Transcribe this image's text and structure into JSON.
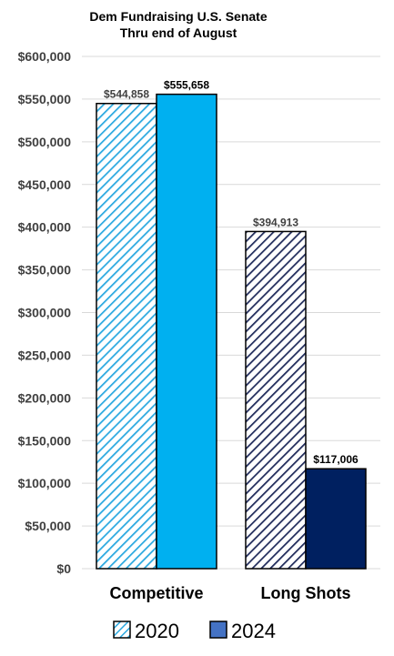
{
  "chart_data": {
    "type": "bar",
    "title": "Dem Fundraising U.S. Senate",
    "subtitle": "Thru end of August",
    "xlabel": "",
    "ylabel": "",
    "categories": [
      "Competitive",
      "Long Shots"
    ],
    "series": [
      {
        "name": "2020",
        "values": [
          544858,
          394913
        ],
        "value_labels": [
          "$544,858",
          "$394,913"
        ],
        "color": "#29A8E0",
        "pattern": "diagonal-hatch"
      },
      {
        "name": "2024",
        "values": [
          555658,
          117006
        ],
        "value_labels": [
          "$555,658",
          "$117,006"
        ],
        "color": "#00B0F0",
        "pattern": "solid"
      }
    ],
    "series_colors_by_category": {
      "2020": [
        "#29A8E0",
        "#1F2A5A"
      ],
      "2024": [
        "#00B0F0",
        "#002060"
      ]
    },
    "ylim": [
      0,
      600000
    ],
    "yticks": [
      0,
      50000,
      100000,
      150000,
      200000,
      250000,
      300000,
      350000,
      400000,
      450000,
      500000,
      550000,
      600000
    ],
    "ytick_labels": [
      "$0",
      "$50,000",
      "$100,000",
      "$150,000",
      "$200,000",
      "$250,000",
      "$300,000",
      "$350,000",
      "$400,000",
      "$450,000",
      "$500,000",
      "$550,000",
      "$600,000"
    ],
    "grid": true,
    "legend": {
      "placement": "bottom",
      "entries": [
        "2020",
        "2024"
      ],
      "swatch_colors": [
        "#29A8E0",
        "#4472C4"
      ]
    }
  }
}
